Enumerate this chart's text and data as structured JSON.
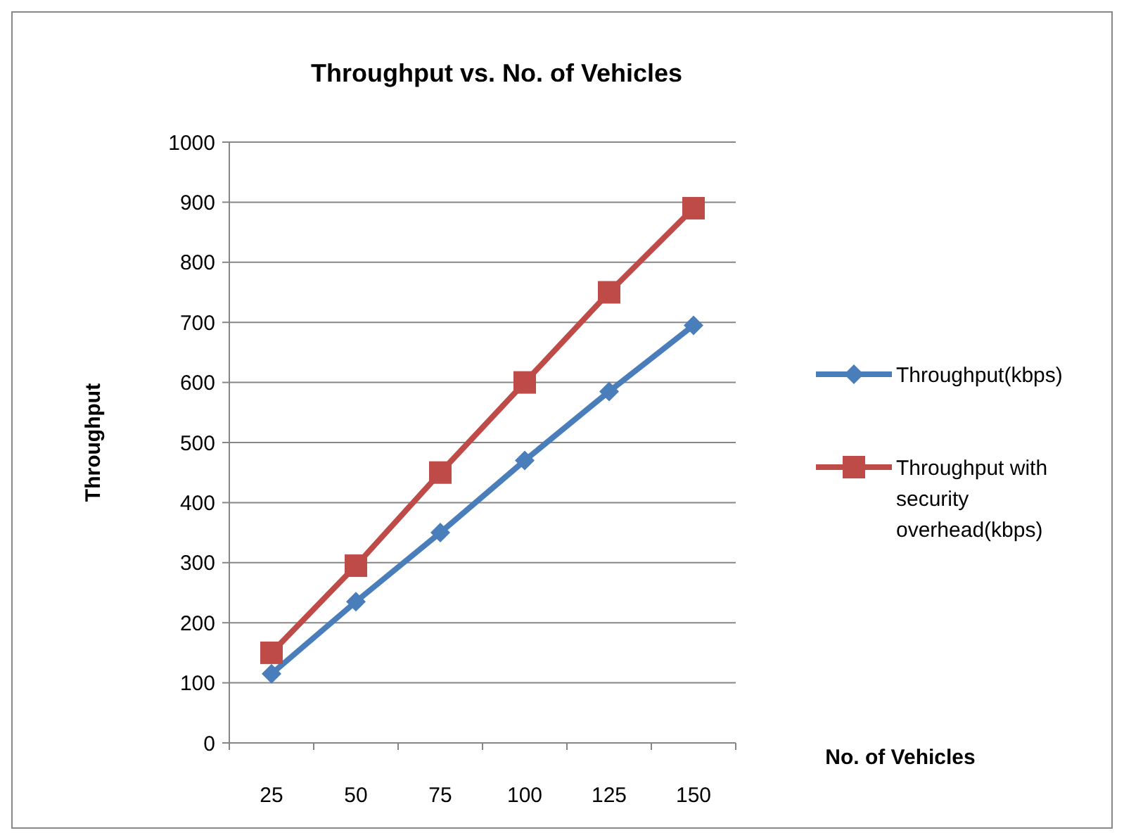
{
  "chart_data": {
    "type": "line",
    "title": "Throughput vs. No. of Vehicles",
    "xlabel": "No. of Vehicles",
    "ylabel": "Throughput",
    "categories": [
      "25",
      "50",
      "75",
      "100",
      "125",
      "150"
    ],
    "series": [
      {
        "name": "Throughput(kbps)",
        "color": "#4a7ebb",
        "marker": "diamond",
        "values": [
          115,
          235,
          350,
          470,
          585,
          695
        ]
      },
      {
        "name": "Throughput with security overhead(kbps)",
        "color": "#be4b48",
        "marker": "square",
        "values": [
          150,
          295,
          450,
          600,
          750,
          890
        ]
      }
    ],
    "ylim": [
      0,
      1000
    ],
    "yticks": [
      0,
      100,
      200,
      300,
      400,
      500,
      600,
      700,
      800,
      900,
      1000
    ],
    "grid": "y",
    "legend": "right"
  }
}
